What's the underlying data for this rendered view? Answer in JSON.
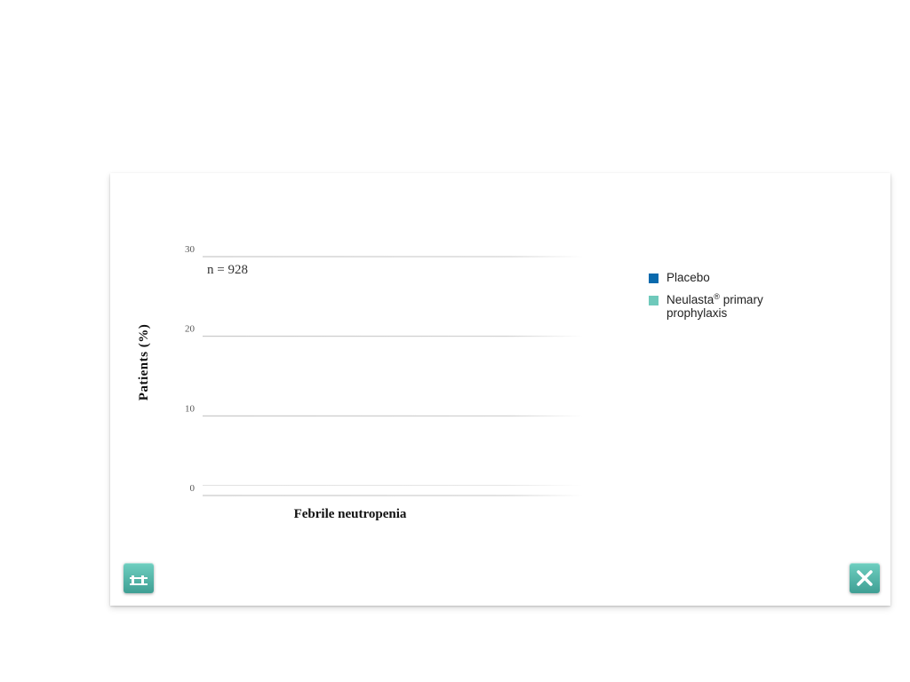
{
  "chart_data": {
    "type": "bar",
    "categories": [
      "Febrile neutropenia"
    ],
    "series": [
      {
        "name": "Placebo",
        "values": [
          null
        ],
        "color": "#0a6aad"
      },
      {
        "name": "Neulasta® primary prophylaxis",
        "values": [
          null
        ],
        "color": "#6fc9bb"
      }
    ],
    "ylabel": "Patients (%)",
    "yticks": [
      0,
      10,
      20,
      30
    ],
    "ylim": [
      0,
      30
    ],
    "annotation": "n = 928",
    "grid": true,
    "legend_position": "right"
  },
  "legend": {
    "items": [
      {
        "label": "Placebo",
        "color": "#0a6aad"
      },
      {
        "label_main": "Neulasta",
        "label_sup": "®",
        "label_rest": " primary prophylaxis",
        "color": "#6fc9bb"
      }
    ]
  },
  "buttons": {
    "chart_icon": "bar-chart-icon",
    "close_icon": "close-icon",
    "accent": "#4fb3a7"
  }
}
